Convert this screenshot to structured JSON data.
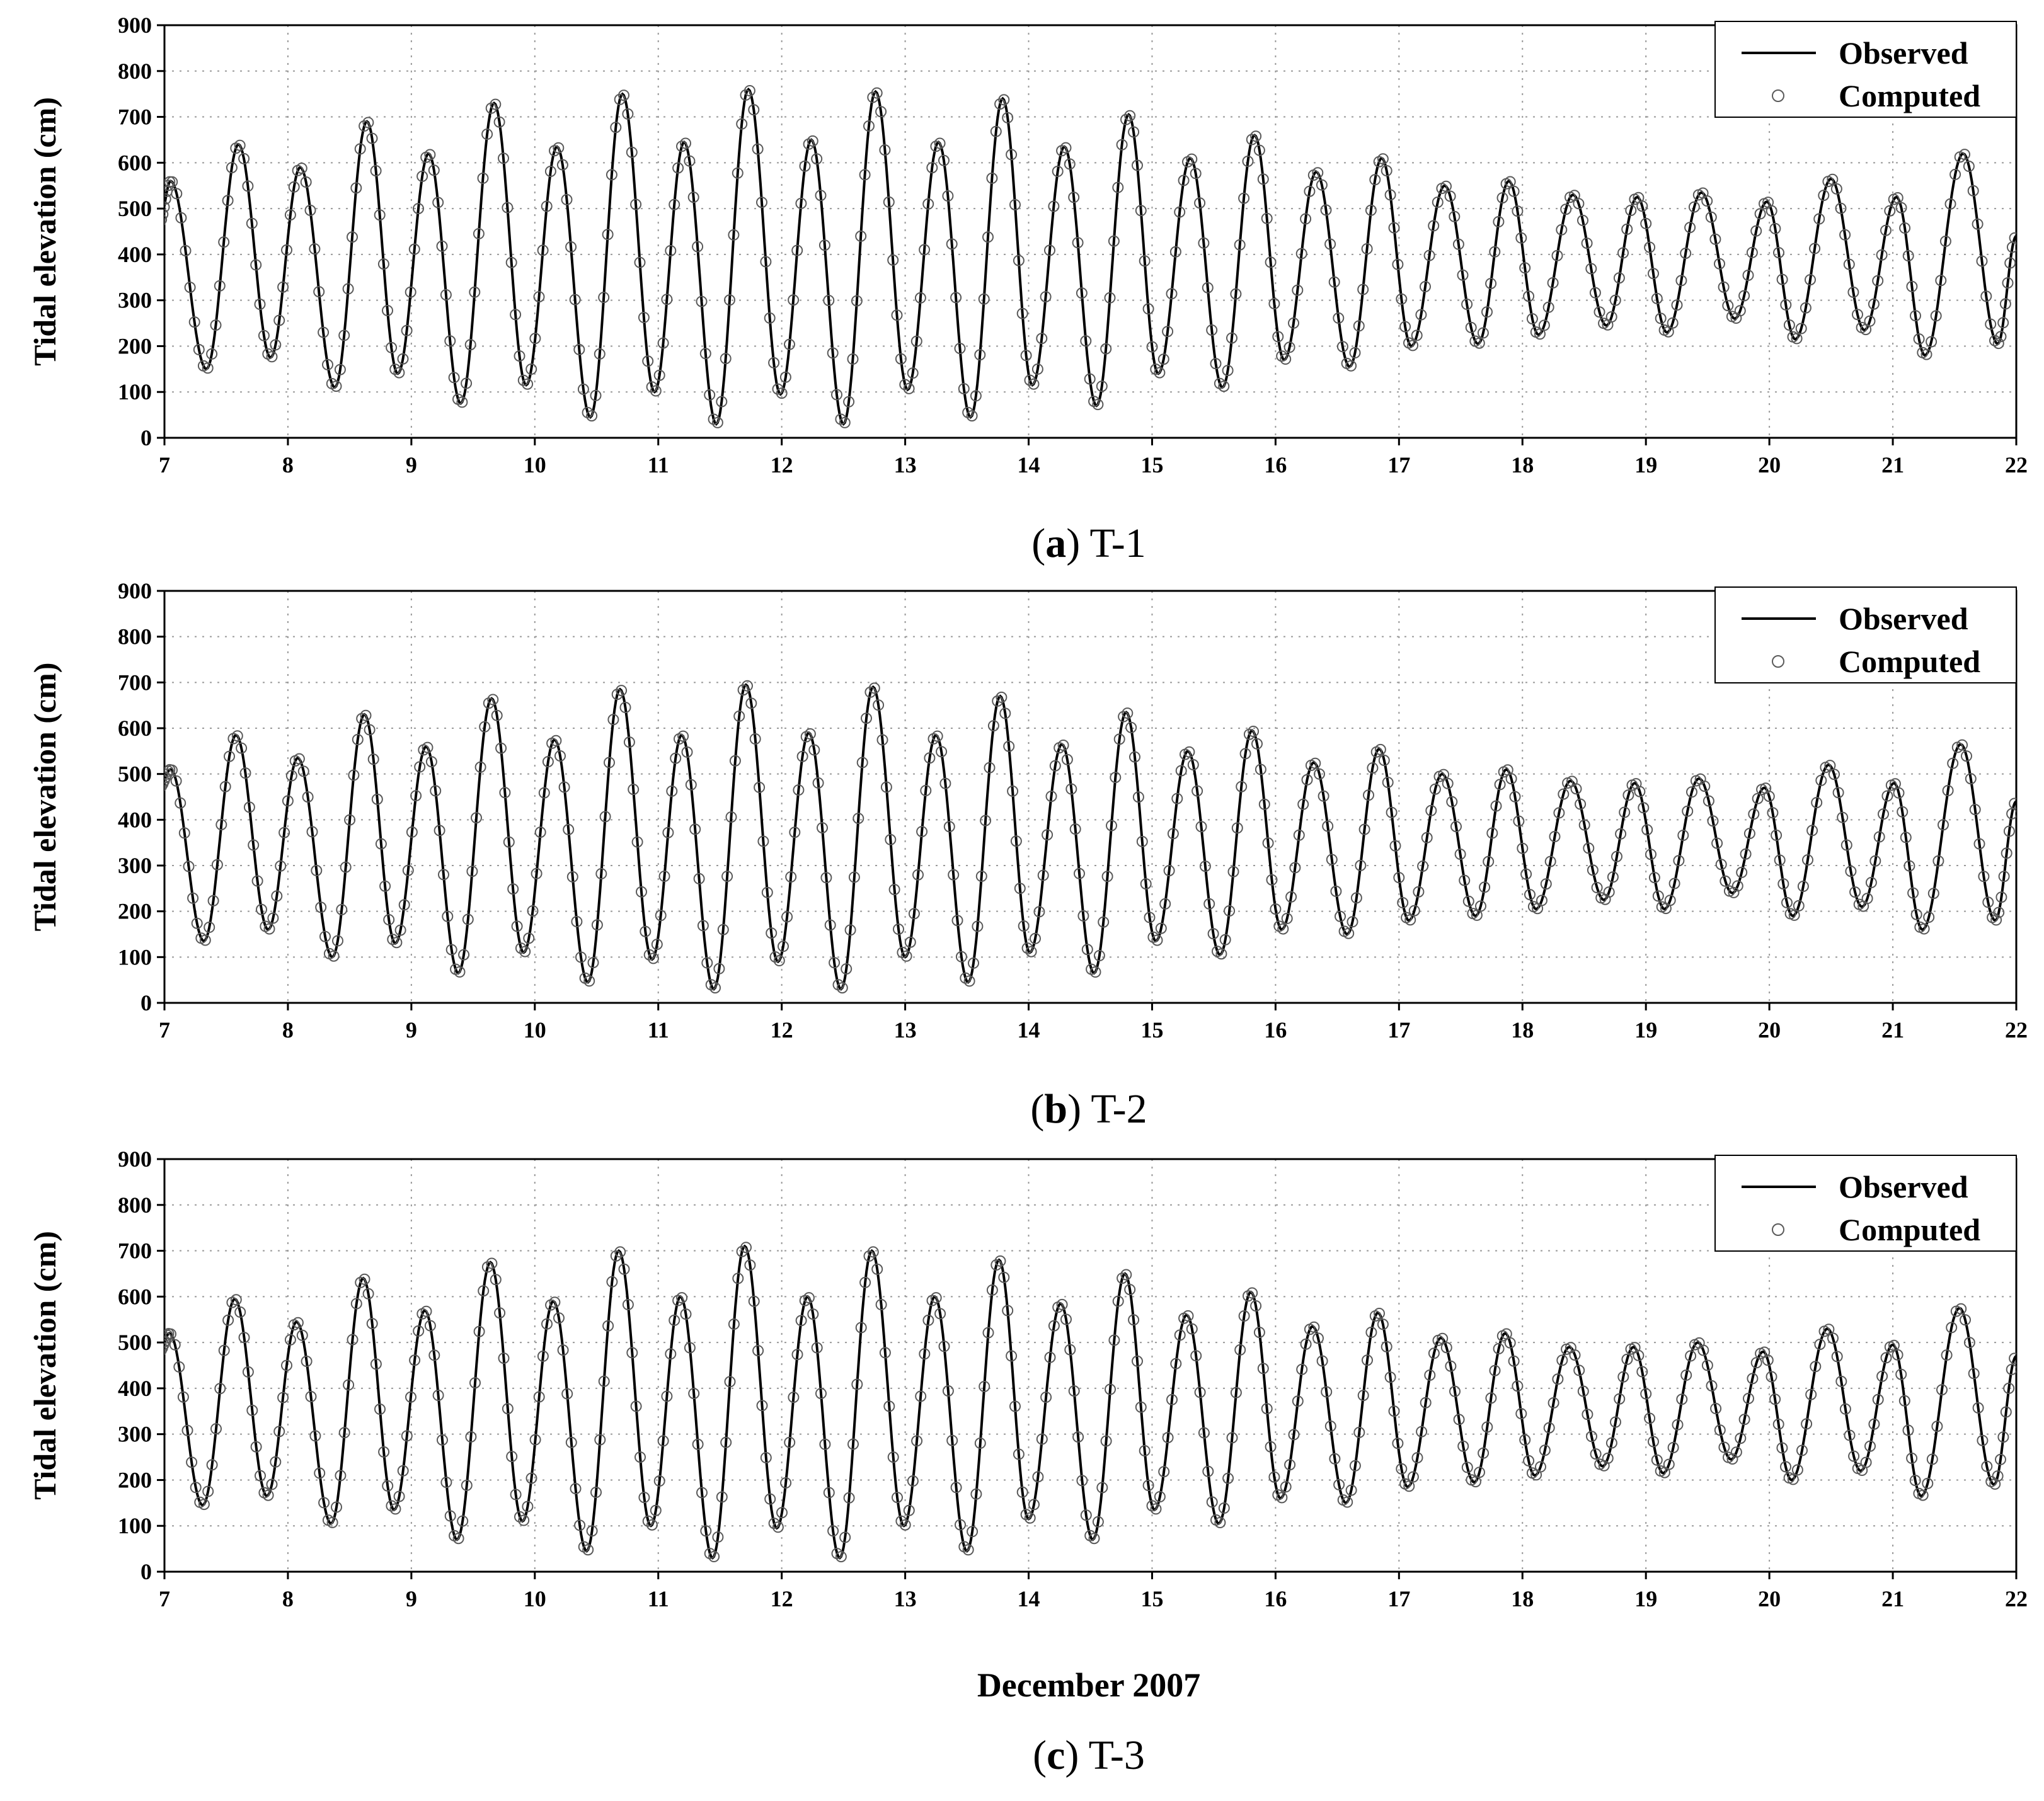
{
  "figure": {
    "xlabel": "December 2007",
    "legend_observed": "Observed",
    "legend_computed": "Computed"
  },
  "chart_data": [
    {
      "type": "line",
      "panel_letter": "a",
      "station": "T-1",
      "ylabel": "Tidal elevation (cm)",
      "xlabel": "",
      "xlim": [
        7,
        22
      ],
      "ylim": [
        0,
        900
      ],
      "xticks": [
        7,
        8,
        9,
        10,
        11,
        12,
        13,
        14,
        15,
        16,
        17,
        18,
        19,
        20,
        21,
        22
      ],
      "yticks": [
        0,
        100,
        200,
        300,
        400,
        500,
        600,
        700,
        800,
        900
      ],
      "grid": true,
      "legend_position": "top-right",
      "series": [
        {
          "name": "Observed",
          "style": "solid black line"
        },
        {
          "name": "Computed",
          "style": "open circle markers"
        }
      ],
      "x": [
        6.96,
        7.05,
        7.34,
        7.6,
        7.86,
        8.1,
        8.38,
        8.64,
        8.89,
        9.14,
        9.4,
        9.67,
        9.93,
        10.18,
        10.45,
        10.71,
        10.97,
        11.21,
        11.47,
        11.73,
        11.99,
        12.24,
        12.5,
        12.76,
        13.02,
        13.27,
        13.53,
        13.79,
        14.03,
        14.29,
        14.55,
        14.81,
        15.05,
        15.31,
        15.57,
        15.83,
        16.07,
        16.33,
        16.6,
        16.86,
        17.1,
        17.37,
        17.64,
        17.89,
        18.13,
        18.41,
        18.68,
        18.93,
        19.17,
        19.45,
        19.72,
        19.98,
        20.21,
        20.5,
        20.77,
        21.03,
        21.26,
        21.57,
        21.85,
        22.0
      ],
      "y": [
        470,
        560,
        150,
        640,
        175,
        590,
        110,
        690,
        140,
        620,
        75,
        730,
        115,
        635,
        45,
        750,
        100,
        645,
        30,
        760,
        95,
        650,
        30,
        755,
        105,
        645,
        45,
        740,
        115,
        635,
        70,
        705,
        140,
        610,
        110,
        660,
        170,
        580,
        155,
        610,
        200,
        550,
        205,
        560,
        225,
        530,
        245,
        525,
        230,
        535,
        260,
        515,
        215,
        565,
        235,
        525,
        180,
        620,
        205,
        440
      ],
      "values_unit": "cm"
    },
    {
      "type": "line",
      "panel_letter": "b",
      "station": "T-2",
      "ylabel": "Tidal elevation (cm)",
      "xlabel": "",
      "xlim": [
        7,
        22
      ],
      "ylim": [
        0,
        900
      ],
      "xticks": [
        7,
        8,
        9,
        10,
        11,
        12,
        13,
        14,
        15,
        16,
        17,
        18,
        19,
        20,
        21,
        22
      ],
      "yticks": [
        0,
        100,
        200,
        300,
        400,
        500,
        600,
        700,
        800,
        900
      ],
      "grid": true,
      "legend_position": "top-right",
      "series": [
        {
          "name": "Observed",
          "style": "solid black line"
        },
        {
          "name": "Computed",
          "style": "open circle markers"
        }
      ],
      "x": [
        6.96,
        7.05,
        7.32,
        7.58,
        7.84,
        8.08,
        8.36,
        8.62,
        8.87,
        9.12,
        9.38,
        9.65,
        9.91,
        10.16,
        10.43,
        10.69,
        10.95,
        11.19,
        11.45,
        11.71,
        11.97,
        12.22,
        12.48,
        12.74,
        13.0,
        13.25,
        13.51,
        13.77,
        14.01,
        14.27,
        14.53,
        14.79,
        15.03,
        15.29,
        15.55,
        15.81,
        16.05,
        16.31,
        16.58,
        16.84,
        17.08,
        17.35,
        17.62,
        17.87,
        18.11,
        18.39,
        18.66,
        18.91,
        19.15,
        19.43,
        19.7,
        19.96,
        20.19,
        20.48,
        20.75,
        21.01,
        21.24,
        21.55,
        21.83,
        22.0
      ],
      "y": [
        470,
        510,
        135,
        585,
        160,
        535,
        100,
        630,
        130,
        560,
        65,
        665,
        110,
        575,
        45,
        685,
        95,
        585,
        30,
        695,
        90,
        590,
        30,
        690,
        100,
        585,
        45,
        670,
        110,
        565,
        65,
        635,
        135,
        550,
        105,
        595,
        160,
        525,
        150,
        555,
        180,
        500,
        190,
        510,
        205,
        485,
        225,
        480,
        205,
        490,
        240,
        470,
        190,
        520,
        210,
        480,
        160,
        565,
        180,
        440
      ],
      "values_unit": "cm"
    },
    {
      "type": "line",
      "panel_letter": "c",
      "station": "T-3",
      "ylabel": "Tidal elevation (cm)",
      "xlabel": "December 2007",
      "xlim": [
        7,
        22
      ],
      "ylim": [
        0,
        900
      ],
      "xticks": [
        7,
        8,
        9,
        10,
        11,
        12,
        13,
        14,
        15,
        16,
        17,
        18,
        19,
        20,
        21,
        22
      ],
      "yticks": [
        0,
        100,
        200,
        300,
        400,
        500,
        600,
        700,
        800,
        900
      ],
      "grid": true,
      "legend_position": "top-right",
      "series": [
        {
          "name": "Observed",
          "style": "solid black line"
        },
        {
          "name": "Computed",
          "style": "open circle markers"
        }
      ],
      "x": [
        6.96,
        7.04,
        7.31,
        7.57,
        7.83,
        8.07,
        8.35,
        8.61,
        8.86,
        9.11,
        9.37,
        9.64,
        9.9,
        10.15,
        10.42,
        10.68,
        10.94,
        11.18,
        11.44,
        11.7,
        11.96,
        12.21,
        12.47,
        12.73,
        12.99,
        13.24,
        13.5,
        13.76,
        14.0,
        14.26,
        14.52,
        14.78,
        15.02,
        15.28,
        15.54,
        15.8,
        16.04,
        16.3,
        16.57,
        16.83,
        17.07,
        17.34,
        17.61,
        17.86,
        18.1,
        18.38,
        18.65,
        18.9,
        19.14,
        19.42,
        19.69,
        19.95,
        20.18,
        20.47,
        20.74,
        21.0,
        21.23,
        21.54,
        21.82,
        22.0
      ],
      "y": [
        480,
        520,
        145,
        595,
        165,
        545,
        105,
        640,
        135,
        570,
        70,
        675,
        110,
        590,
        45,
        700,
        100,
        600,
        30,
        710,
        95,
        600,
        30,
        700,
        100,
        600,
        45,
        680,
        115,
        585,
        70,
        650,
        135,
        560,
        105,
        610,
        160,
        535,
        150,
        565,
        185,
        510,
        195,
        520,
        210,
        490,
        230,
        490,
        215,
        500,
        245,
        480,
        200,
        530,
        220,
        495,
        165,
        575,
        190,
        470
      ],
      "values_unit": "cm"
    }
  ]
}
